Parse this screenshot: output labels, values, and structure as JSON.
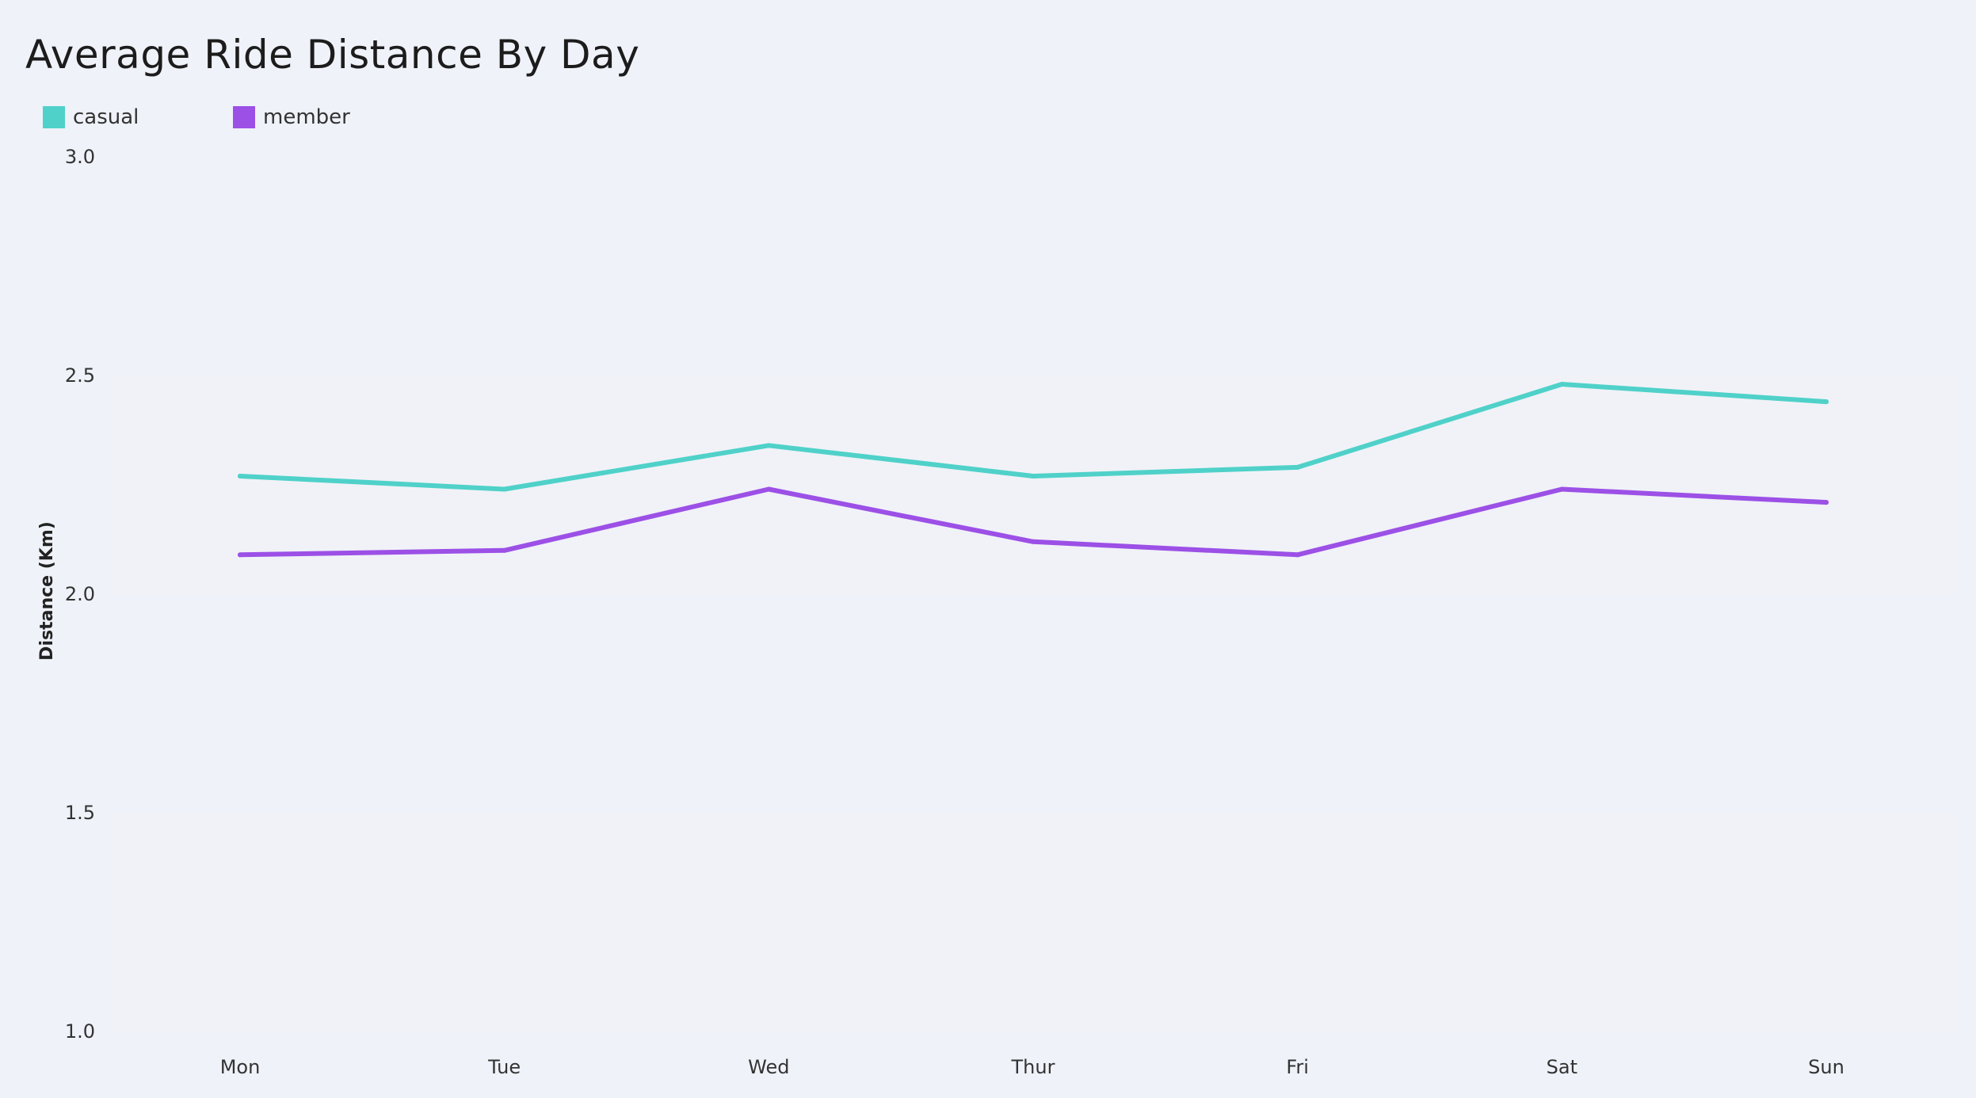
{
  "chart_data": {
    "type": "line",
    "title": "Average Ride Distance By Day",
    "xlabel": "",
    "ylabel": "Distance (Km)",
    "categories": [
      "Mon",
      "Tue",
      "Wed",
      "Thur",
      "Fri",
      "Sat",
      "Sun"
    ],
    "ylim": [
      1.0,
      3.0
    ],
    "yticks": [
      "1.0",
      "1.5",
      "2.0",
      "2.5",
      "3.0"
    ],
    "series": [
      {
        "name": "casual",
        "color": "#4fd1c9",
        "values": [
          2.27,
          2.24,
          2.34,
          2.27,
          2.29,
          2.48,
          2.44
        ]
      },
      {
        "name": "member",
        "color": "#9c50e6",
        "values": [
          2.09,
          2.1,
          2.24,
          2.12,
          2.09,
          2.24,
          2.21
        ]
      }
    ],
    "grid": "horizontal bands",
    "legend": "top-left"
  }
}
